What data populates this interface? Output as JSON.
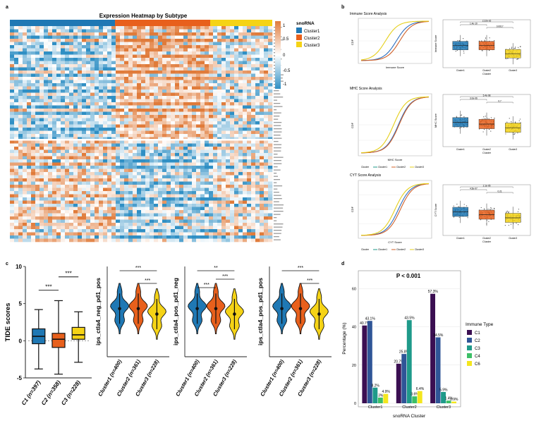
{
  "panel_letters": {
    "a": "a",
    "b": "b",
    "c": "c",
    "d": "d"
  },
  "colors": {
    "cluster1": "#1f78b4",
    "cluster2": "#e8601c",
    "cluster3": "#f5d316",
    "heat_low": "#2f8fc4",
    "heat_high": "#e07b3a"
  },
  "heatmap": {
    "title": "Expression Heatmap by Subtype",
    "legend_title": "snoRNA",
    "legend_items": [
      "Cluster1",
      "Cluster2",
      "Cluster3"
    ],
    "scale_ticks": [
      "1",
      "0.5",
      "0",
      "-0.5",
      "-1"
    ]
  },
  "cdf_panels": [
    {
      "title": "Immune Score Analysis",
      "ylabel": "CDF",
      "xlabel": "Immune Score"
    },
    {
      "title": "MHC Score Analysis",
      "ylabel": "CDF",
      "xlabel": "MHC Score"
    },
    {
      "title": "CYT Score Analysis",
      "ylabel": "CDF",
      "xlabel": "CYT Score"
    }
  ],
  "cdf_legend": {
    "label": "Cluster",
    "items": [
      "Cluster1",
      "Cluster2",
      "Cluster3"
    ]
  },
  "box_panels": [
    {
      "ylabel": "Immune Score",
      "xlabel": "Cluster",
      "pvals": [
        "2.22e-16",
        "1.4e-10",
        "0.0017"
      ]
    },
    {
      "ylabel": "MHC Score",
      "xlabel": "Cluster",
      "pvals": [
        "5.4e-08",
        "3.0e-06",
        "0.7"
      ]
    },
    {
      "ylabel": "CYT Score",
      "xlabel": "Cluster",
      "pvals": [
        "2.1e-05",
        "4.5e-07",
        "0.21"
      ]
    }
  ],
  "box_categories": [
    "Cluster1",
    "Cluster2",
    "Cluster3"
  ],
  "tide": {
    "ylabel": "TIDE scores",
    "ticks": [
      "10",
      "5",
      "0",
      "-5"
    ],
    "categories": [
      "C1 (n=397)",
      "C2 (n=358)",
      "C3 (n=228)"
    ],
    "sig": [
      "***",
      "***"
    ]
  },
  "violins": [
    {
      "ylabel": "ips_ctla4_neg_pd1_pos",
      "sig": [
        "***",
        "***"
      ]
    },
    {
      "ylabel": "ips_ctla4_pos_pd1_neg",
      "sig": [
        "**",
        "***",
        "***"
      ]
    },
    {
      "ylabel": "ips_ctla4_pos_pd1_pos",
      "sig": [
        "***",
        "***"
      ]
    }
  ],
  "violin_categories": [
    "Cluster1 (n=400)",
    "Cluster2 (n=361)",
    "Cluster3 (n=228)"
  ],
  "chart_data": {
    "type": "bar",
    "title": "P < 0.001",
    "xlabel": "snoRNA Cluster",
    "ylabel": "Percentage (%)",
    "ylim": [
      0,
      62
    ],
    "yticks": [
      "0",
      "20",
      "40",
      "60"
    ],
    "categories": [
      "Cluster1",
      "Cluster2",
      "Cluster3"
    ],
    "legend_title": "Immune Type",
    "series": [
      {
        "name": "C1",
        "color": "#3b0f52",
        "values": [
          40.7,
          20.7,
          57.3
        ],
        "labels": [
          "40.7%",
          "20.7%",
          "57.3%"
        ]
      },
      {
        "name": "C2",
        "color": "#2f5597",
        "values": [
          43.1,
          25.8,
          34.5
        ],
        "labels": [
          "43.1%",
          "25.8%",
          "34.5%"
        ]
      },
      {
        "name": "C3",
        "color": "#1f9a8a",
        "values": [
          8.2,
          43.5,
          5.9
        ],
        "labels": [
          "8.2%",
          "43.5%",
          "5.9%"
        ]
      },
      {
        "name": "C4",
        "color": "#3cbf66",
        "values": [
          3.0,
          3.6,
          1.4
        ],
        "labels": [
          "3%",
          "3.6%",
          "1.4%"
        ]
      },
      {
        "name": "C6",
        "color": "#f4e61e",
        "values": [
          4.9,
          6.4,
          0.9
        ],
        "labels": [
          "4.9%",
          "6.4%",
          "0.9%"
        ]
      }
    ]
  }
}
